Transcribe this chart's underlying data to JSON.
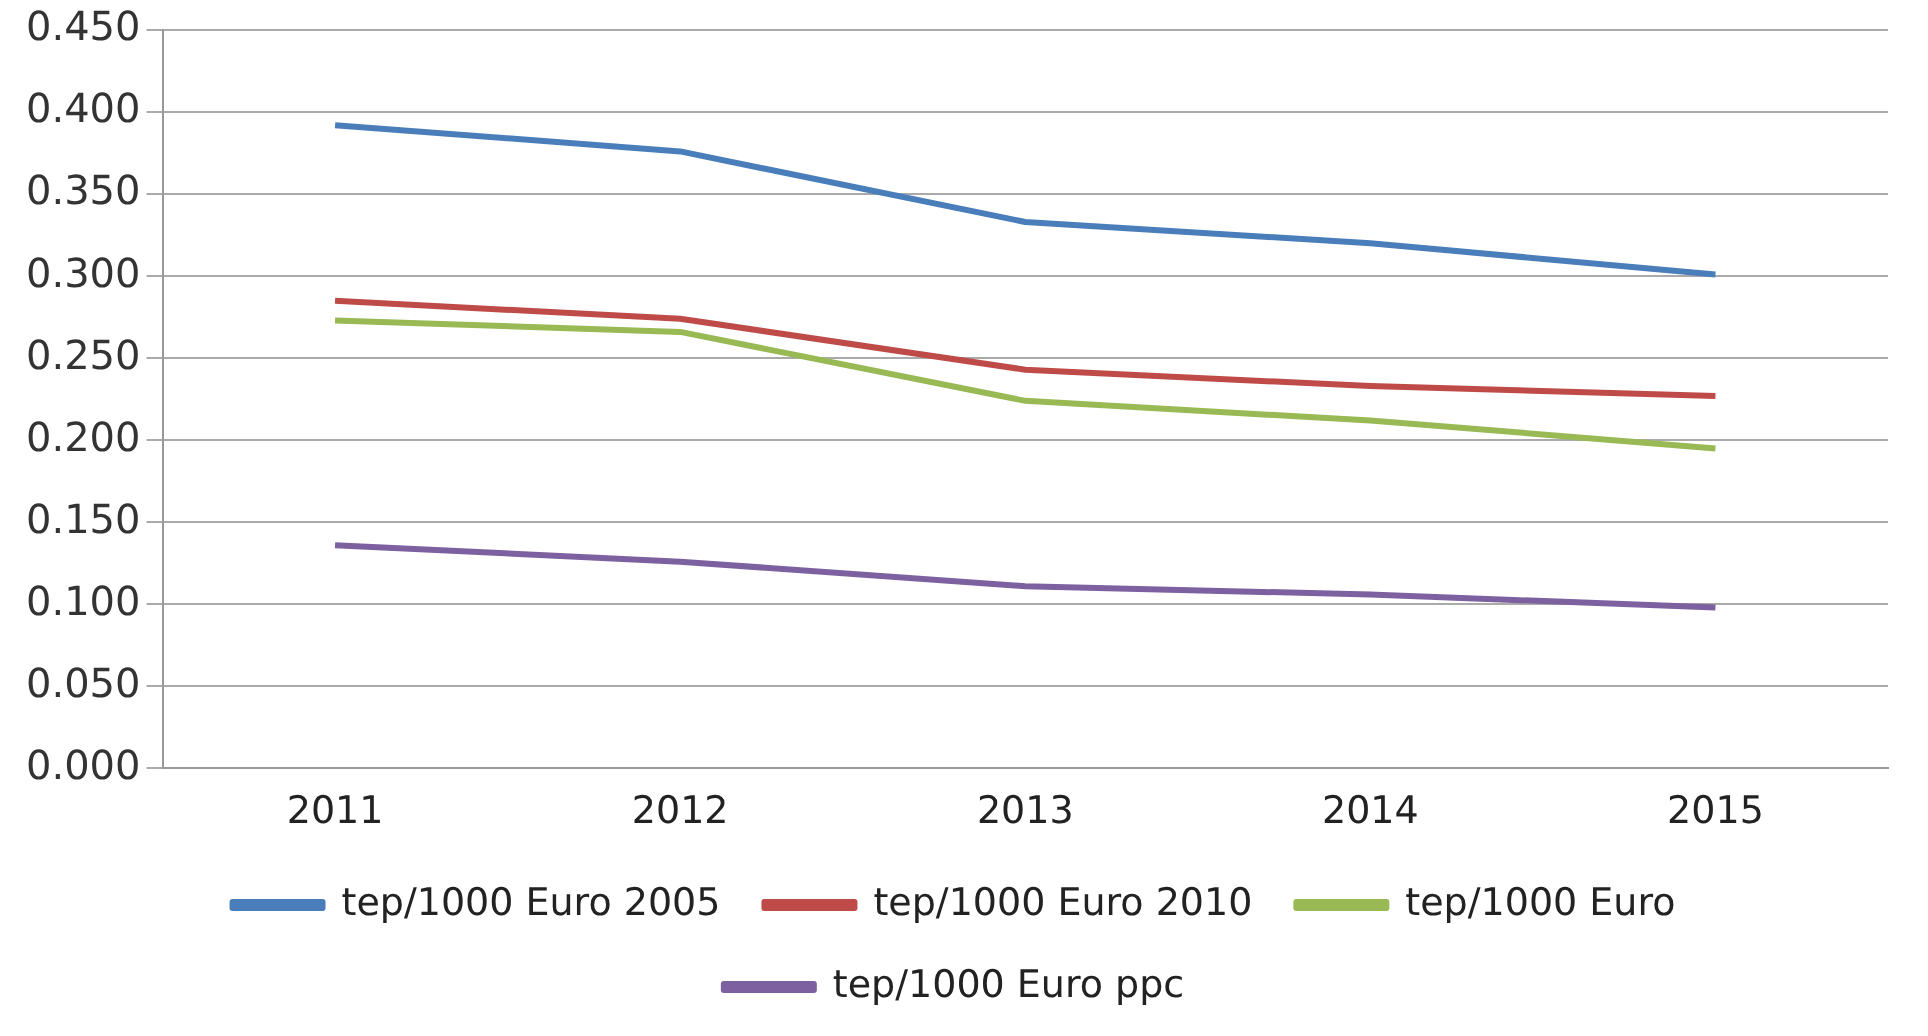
{
  "chart_data": {
    "type": "line",
    "categories": [
      "2011",
      "2012",
      "2013",
      "2014",
      "2015"
    ],
    "series": [
      {
        "name": "tep/1000 Euro 2005",
        "color": "#4a7ebb",
        "values": [
          0.392,
          0.376,
          0.333,
          0.32,
          0.301
        ]
      },
      {
        "name": "tep/1000 Euro 2010",
        "color": "#be4b48",
        "values": [
          0.285,
          0.274,
          0.243,
          0.233,
          0.227
        ]
      },
      {
        "name": "tep/1000 Euro",
        "color": "#98b954",
        "values": [
          0.273,
          0.266,
          0.224,
          0.212,
          0.195
        ]
      },
      {
        "name": "tep/1000 Euro ppc",
        "color": "#7d60a0",
        "values": [
          0.136,
          0.126,
          0.111,
          0.106,
          0.098
        ]
      }
    ],
    "ylim": [
      0,
      0.45
    ],
    "yticks": [
      {
        "value": 0,
        "label": "0.000"
      },
      {
        "value": 0.05,
        "label": "0.050"
      },
      {
        "value": 0.1,
        "label": "0.100"
      },
      {
        "value": 0.15,
        "label": "0.150"
      },
      {
        "value": 0.2,
        "label": "0.200"
      },
      {
        "value": 0.25,
        "label": "0.250"
      },
      {
        "value": 0.3,
        "label": "0.300"
      },
      {
        "value": 0.35,
        "label": "0.350"
      },
      {
        "value": 0.4,
        "label": "0.400"
      },
      {
        "value": 0.45,
        "label": "0.450"
      }
    ],
    "grid": "y",
    "legend": "bottom",
    "marker": "none",
    "line_style": "solid"
  }
}
